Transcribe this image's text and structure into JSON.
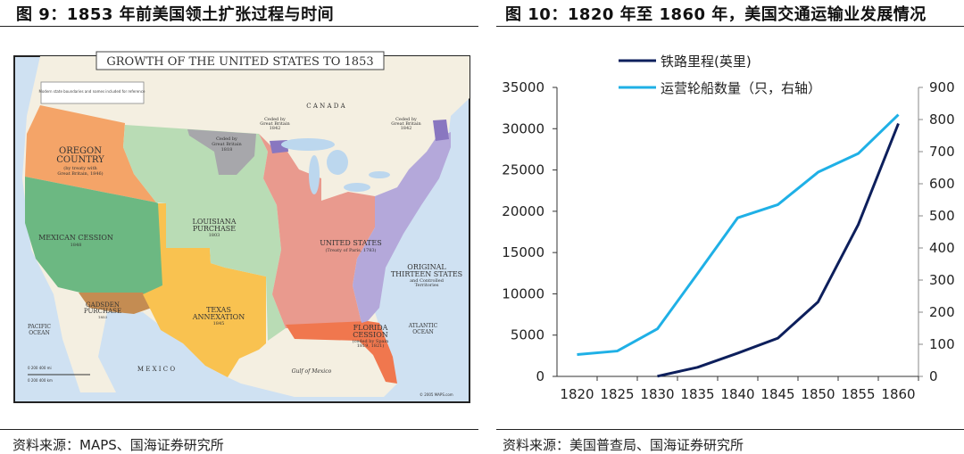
{
  "left_figure": {
    "title": "图 9：1853 年前美国领土扩张过程与时间",
    "source": "资料来源：MAPS、国海证券研究所",
    "map": {
      "title": "GROWTH OF THE UNITED STATES TO 1853",
      "legend_note": "Modern state boundaries and names included for reference",
      "labels": {
        "canada": "C A N A D A",
        "oregon": "OREGON",
        "oregon2": "COUNTRY",
        "oregon_note": "(by treaty with",
        "oregon_note2": "Great Britain, 1846)",
        "mexican_cession": "MEXICAN CESSION",
        "mexican_cession_year": "1848",
        "louisiana": "LOUISIANA",
        "louisiana2": "PURCHASE",
        "louisiana_year": "1803",
        "ceded_1818": "Ceded by",
        "ceded_1818b": "Great Britain",
        "ceded_1818c": "1818",
        "ceded_1842a": "Ceded by",
        "ceded_1842a2": "Great Britain",
        "ceded_1842a3": "1842",
        "ceded_1842b": "Ceded by",
        "ceded_1842b2": "Great Britain",
        "ceded_1842b3": "1842",
        "united_states": "UNITED STATES",
        "united_states_note": "(Treaty of Paris, 1783)",
        "original": "ORIGINAL",
        "original2": "THIRTEEN STATES",
        "original_note": "and Controlled",
        "original_note2": "Territories",
        "texas": "TEXAS",
        "texas2": "ANNEXATION",
        "texas_year": "1845",
        "florida": "FLORIDA",
        "florida2": "CESSION",
        "florida_note": "(ceded by Spain",
        "florida_note2": "1819, 1821)",
        "gadsden": "GADSDEN",
        "gadsden2": "PURCHASE",
        "gadsden_year": "1853",
        "mexico": "M E X I C O",
        "pacific": "PACIFIC",
        "pacific2": "OCEAN",
        "atlantic": "ATLANTIC",
        "atlantic2": "OCEAN",
        "gulf": "Gulf of Mexico",
        "scale_mi": "0     200     400 mi",
        "scale_km": "0   200   400 km",
        "copyright": "© 2005 MAPS.com"
      },
      "colors": {
        "ocean": "#cfe1f2",
        "land": "#f4efe1",
        "oregon": "#f4a468",
        "mexican_cession": "#6cb882",
        "gadsden": "#c48c52",
        "texas": "#f9c250",
        "louisiana": "#b9dcb5",
        "ceded_1818": "#a7a7ab",
        "united_states": "#e99a8e",
        "florida": "#f0774e",
        "original": "#b4a8da",
        "ceded_1842": "#8977c0"
      }
    }
  },
  "right_figure": {
    "title": "图 10：1820 年至 1860 年，美国交通运输业发展情况",
    "source": "资料来源：美国普查局、国海证券研究所"
  },
  "chart_data": {
    "type": "line",
    "title": "",
    "categories": [
      "1820",
      "1825",
      "1830",
      "1835",
      "1840",
      "1845",
      "1850",
      "1855",
      "1860"
    ],
    "y_left": {
      "range": [
        0,
        35000
      ],
      "ticks": [
        "0",
        "5000",
        "10000",
        "15000",
        "20000",
        "25000",
        "30000",
        "35000"
      ]
    },
    "y_right": {
      "range": [
        0,
        900
      ],
      "ticks": [
        "0",
        "100",
        "200",
        "300",
        "400",
        "500",
        "600",
        "700",
        "800",
        "900"
      ]
    },
    "grid": false,
    "legend_position": "top",
    "series": [
      {
        "name": "铁路里程(英里)",
        "axis": "left",
        "color": "#0d1f5c",
        "values": [
          null,
          null,
          23,
          1098,
          2818,
          4633,
          9021,
          18374,
          30626
        ]
      },
      {
        "name": "运营轮船数量（只，右轴）",
        "axis": "right",
        "color": "#1fb0e6",
        "values": [
          68,
          79,
          148,
          320,
          494,
          535,
          636,
          694,
          815
        ]
      }
    ]
  }
}
